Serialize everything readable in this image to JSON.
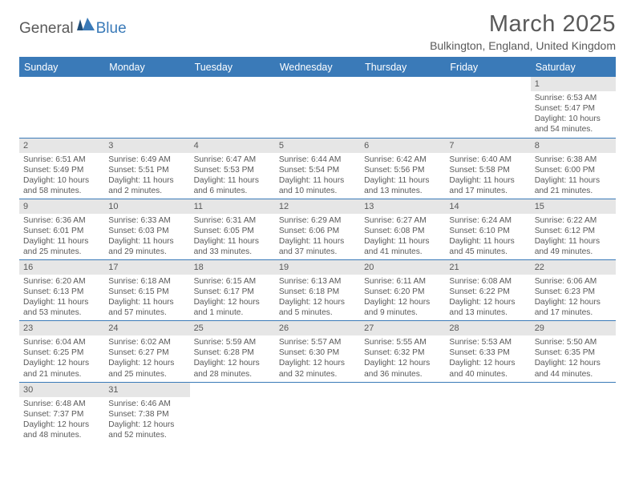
{
  "logo": {
    "text1": "General",
    "text2": "Blue"
  },
  "title": "March 2025",
  "subtitle": "Bulkington, England, United Kingdom",
  "colors": {
    "accent": "#3a7ab8",
    "header_bg": "#3a7ab8",
    "header_fg": "#ffffff",
    "daynum_bg": "#e6e6e6",
    "text": "#595959",
    "row_border": "#3a7ab8",
    "background": "#ffffff"
  },
  "weekdays": [
    "Sunday",
    "Monday",
    "Tuesday",
    "Wednesday",
    "Thursday",
    "Friday",
    "Saturday"
  ],
  "weeks": [
    [
      {
        "empty": true
      },
      {
        "empty": true
      },
      {
        "empty": true
      },
      {
        "empty": true
      },
      {
        "empty": true
      },
      {
        "empty": true
      },
      {
        "n": "1",
        "sunrise": "Sunrise: 6:53 AM",
        "sunset": "Sunset: 5:47 PM",
        "daylight": "Daylight: 10 hours and 54 minutes."
      }
    ],
    [
      {
        "n": "2",
        "sunrise": "Sunrise: 6:51 AM",
        "sunset": "Sunset: 5:49 PM",
        "daylight": "Daylight: 10 hours and 58 minutes."
      },
      {
        "n": "3",
        "sunrise": "Sunrise: 6:49 AM",
        "sunset": "Sunset: 5:51 PM",
        "daylight": "Daylight: 11 hours and 2 minutes."
      },
      {
        "n": "4",
        "sunrise": "Sunrise: 6:47 AM",
        "sunset": "Sunset: 5:53 PM",
        "daylight": "Daylight: 11 hours and 6 minutes."
      },
      {
        "n": "5",
        "sunrise": "Sunrise: 6:44 AM",
        "sunset": "Sunset: 5:54 PM",
        "daylight": "Daylight: 11 hours and 10 minutes."
      },
      {
        "n": "6",
        "sunrise": "Sunrise: 6:42 AM",
        "sunset": "Sunset: 5:56 PM",
        "daylight": "Daylight: 11 hours and 13 minutes."
      },
      {
        "n": "7",
        "sunrise": "Sunrise: 6:40 AM",
        "sunset": "Sunset: 5:58 PM",
        "daylight": "Daylight: 11 hours and 17 minutes."
      },
      {
        "n": "8",
        "sunrise": "Sunrise: 6:38 AM",
        "sunset": "Sunset: 6:00 PM",
        "daylight": "Daylight: 11 hours and 21 minutes."
      }
    ],
    [
      {
        "n": "9",
        "sunrise": "Sunrise: 6:36 AM",
        "sunset": "Sunset: 6:01 PM",
        "daylight": "Daylight: 11 hours and 25 minutes."
      },
      {
        "n": "10",
        "sunrise": "Sunrise: 6:33 AM",
        "sunset": "Sunset: 6:03 PM",
        "daylight": "Daylight: 11 hours and 29 minutes."
      },
      {
        "n": "11",
        "sunrise": "Sunrise: 6:31 AM",
        "sunset": "Sunset: 6:05 PM",
        "daylight": "Daylight: 11 hours and 33 minutes."
      },
      {
        "n": "12",
        "sunrise": "Sunrise: 6:29 AM",
        "sunset": "Sunset: 6:06 PM",
        "daylight": "Daylight: 11 hours and 37 minutes."
      },
      {
        "n": "13",
        "sunrise": "Sunrise: 6:27 AM",
        "sunset": "Sunset: 6:08 PM",
        "daylight": "Daylight: 11 hours and 41 minutes."
      },
      {
        "n": "14",
        "sunrise": "Sunrise: 6:24 AM",
        "sunset": "Sunset: 6:10 PM",
        "daylight": "Daylight: 11 hours and 45 minutes."
      },
      {
        "n": "15",
        "sunrise": "Sunrise: 6:22 AM",
        "sunset": "Sunset: 6:12 PM",
        "daylight": "Daylight: 11 hours and 49 minutes."
      }
    ],
    [
      {
        "n": "16",
        "sunrise": "Sunrise: 6:20 AM",
        "sunset": "Sunset: 6:13 PM",
        "daylight": "Daylight: 11 hours and 53 minutes."
      },
      {
        "n": "17",
        "sunrise": "Sunrise: 6:18 AM",
        "sunset": "Sunset: 6:15 PM",
        "daylight": "Daylight: 11 hours and 57 minutes."
      },
      {
        "n": "18",
        "sunrise": "Sunrise: 6:15 AM",
        "sunset": "Sunset: 6:17 PM",
        "daylight": "Daylight: 12 hours and 1 minute."
      },
      {
        "n": "19",
        "sunrise": "Sunrise: 6:13 AM",
        "sunset": "Sunset: 6:18 PM",
        "daylight": "Daylight: 12 hours and 5 minutes."
      },
      {
        "n": "20",
        "sunrise": "Sunrise: 6:11 AM",
        "sunset": "Sunset: 6:20 PM",
        "daylight": "Daylight: 12 hours and 9 minutes."
      },
      {
        "n": "21",
        "sunrise": "Sunrise: 6:08 AM",
        "sunset": "Sunset: 6:22 PM",
        "daylight": "Daylight: 12 hours and 13 minutes."
      },
      {
        "n": "22",
        "sunrise": "Sunrise: 6:06 AM",
        "sunset": "Sunset: 6:23 PM",
        "daylight": "Daylight: 12 hours and 17 minutes."
      }
    ],
    [
      {
        "n": "23",
        "sunrise": "Sunrise: 6:04 AM",
        "sunset": "Sunset: 6:25 PM",
        "daylight": "Daylight: 12 hours and 21 minutes."
      },
      {
        "n": "24",
        "sunrise": "Sunrise: 6:02 AM",
        "sunset": "Sunset: 6:27 PM",
        "daylight": "Daylight: 12 hours and 25 minutes."
      },
      {
        "n": "25",
        "sunrise": "Sunrise: 5:59 AM",
        "sunset": "Sunset: 6:28 PM",
        "daylight": "Daylight: 12 hours and 28 minutes."
      },
      {
        "n": "26",
        "sunrise": "Sunrise: 5:57 AM",
        "sunset": "Sunset: 6:30 PM",
        "daylight": "Daylight: 12 hours and 32 minutes."
      },
      {
        "n": "27",
        "sunrise": "Sunrise: 5:55 AM",
        "sunset": "Sunset: 6:32 PM",
        "daylight": "Daylight: 12 hours and 36 minutes."
      },
      {
        "n": "28",
        "sunrise": "Sunrise: 5:53 AM",
        "sunset": "Sunset: 6:33 PM",
        "daylight": "Daylight: 12 hours and 40 minutes."
      },
      {
        "n": "29",
        "sunrise": "Sunrise: 5:50 AM",
        "sunset": "Sunset: 6:35 PM",
        "daylight": "Daylight: 12 hours and 44 minutes."
      }
    ],
    [
      {
        "n": "30",
        "sunrise": "Sunrise: 6:48 AM",
        "sunset": "Sunset: 7:37 PM",
        "daylight": "Daylight: 12 hours and 48 minutes."
      },
      {
        "n": "31",
        "sunrise": "Sunrise: 6:46 AM",
        "sunset": "Sunset: 7:38 PM",
        "daylight": "Daylight: 12 hours and 52 minutes."
      },
      {
        "empty": true
      },
      {
        "empty": true
      },
      {
        "empty": true
      },
      {
        "empty": true
      },
      {
        "empty": true
      }
    ]
  ]
}
